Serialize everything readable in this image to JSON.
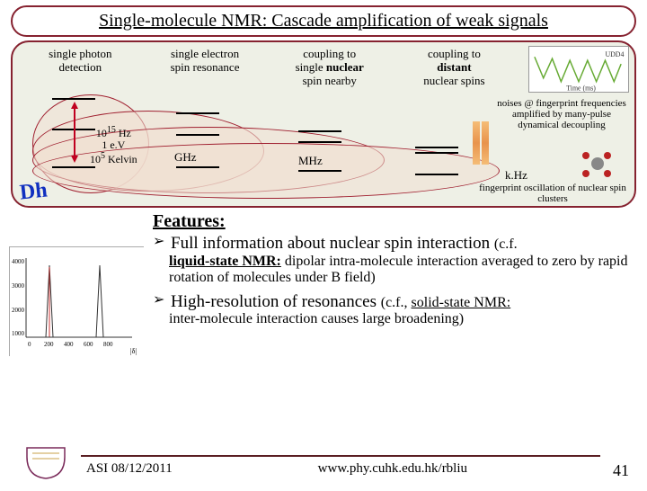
{
  "title": "Single-molecule NMR: Cascade amplification of weak signals",
  "columns": [
    {
      "heading_html": "single photon<br>detection"
    },
    {
      "heading_html": "single electron<br>spin resonance"
    },
    {
      "heading_html": "coupling to<br>single <b>nuclear</b><br>spin nearby"
    },
    {
      "heading_html": "coupling to<br><b>distant</b><br>nuclear spins"
    }
  ],
  "freq_block_html": "10<sup>15</sup> Hz<br>1 e.V<br>10<sup>5</sup> Kelvin",
  "freq_labels": {
    "ghz": "GHz",
    "mhz": "MHz",
    "khz": "k.Hz"
  },
  "note_top": "noises @ fingerprint frequencies amplified by many-pulse dynamical decoupling",
  "note_bottom": "fingerprint oscillation of nuclear spin clusters",
  "mini_plot_label": "UDD4",
  "mini_plot_xaxis": "Time (ms)",
  "features": {
    "heading": "Features:",
    "b1_main": "Full information about nuclear spin interaction ",
    "b1_tail": "(c.f.",
    "b1_sub_lead": "liquid-state NMR:",
    "b1_sub_rest": " dipolar intra-molecule interaction averaged to zero by rapid rotation of molecules under B field)",
    "b2_main": "High-resolution of resonances ",
    "b2_tail": "(c.f., ",
    "b2_link": "solid-state NMR:",
    "b2_sub": "inter-molecule interaction causes large broadening)"
  },
  "footer": {
    "left": "ASI 08/12/2011",
    "right": "www.phy.cuhk.edu.hk/rbliu",
    "page": "41"
  },
  "colors": {
    "frame": "#862230",
    "panel_bg": "#eef0e6",
    "ellipse_border": "#a02030"
  }
}
